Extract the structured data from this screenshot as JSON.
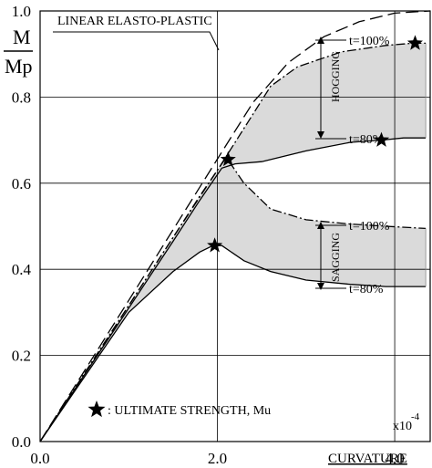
{
  "chart_data": {
    "type": "line",
    "title": "",
    "ylabel_top": "M",
    "ylabel_bottom": "Mp",
    "xlabel": "CURVATURE",
    "x_multiplier": "x10",
    "x_exponent": "-4",
    "xlim": [
      0,
      4.4
    ],
    "ylim": [
      0,
      1.0
    ],
    "xticks": [
      0.0,
      2.0,
      4.0
    ],
    "xtick_labels": [
      "0.0",
      "2.0",
      "4.0"
    ],
    "yticks": [
      0.0,
      0.2,
      0.4,
      0.6,
      0.8,
      1.0
    ],
    "ytick_labels": [
      "0.0",
      "0.2",
      "0.4",
      "0.6",
      "0.8",
      "1.0"
    ],
    "grid": true,
    "annotations": {
      "linear_label": "LINEAR ELASTO-PLASTIC",
      "hogging": "HOGGING",
      "sagging": "SAGGING",
      "hog_t100": "t=100%",
      "hog_t80": "t=80%",
      "sag_t100": "t=100%",
      "sag_t80": "t=80%",
      "legend_text": ": ULTIMATE STRENGTH, Mu"
    },
    "series": [
      {
        "style": "long-dash",
        "x": [
          0,
          0.5,
          1.0,
          1.5,
          2.0,
          2.4,
          2.8,
          3.2,
          3.6,
          4.0,
          4.4
        ],
        "y": [
          0,
          0.164,
          0.328,
          0.492,
          0.656,
          0.787,
          0.88,
          0.94,
          0.975,
          0.995,
          1.0
        ]
      },
      {
        "style": "dash-dot",
        "x": [
          0,
          0.5,
          1.0,
          1.5,
          2.0,
          2.4,
          2.6,
          2.9,
          3.4,
          3.9,
          4.2,
          4.35
        ],
        "y": [
          0,
          0.158,
          0.316,
          0.474,
          0.63,
          0.76,
          0.825,
          0.87,
          0.905,
          0.92,
          0.925,
          0.925
        ]
      },
      {
        "style": "solid",
        "x": [
          0,
          0.5,
          1.0,
          1.5,
          1.8,
          2.05,
          2.2,
          2.5,
          3.0,
          3.5,
          3.85,
          4.1,
          4.35
        ],
        "y": [
          0,
          0.155,
          0.31,
          0.465,
          0.56,
          0.635,
          0.645,
          0.65,
          0.675,
          0.695,
          0.7,
          0.705,
          0.705
        ]
      },
      {
        "style": "dash-dot",
        "x": [
          0,
          0.5,
          1.0,
          1.5,
          1.8,
          2.0,
          2.1,
          2.3,
          2.6,
          3.0,
          3.5,
          3.9,
          4.35
        ],
        "y": [
          0,
          0.158,
          0.316,
          0.474,
          0.57,
          0.63,
          0.66,
          0.6,
          0.54,
          0.515,
          0.505,
          0.5,
          0.495
        ]
      },
      {
        "style": "solid",
        "x": [
          0,
          0.5,
          1.0,
          1.5,
          1.8,
          1.95,
          2.05,
          2.3,
          2.6,
          3.0,
          3.5,
          3.9,
          4.35
        ],
        "y": [
          0,
          0.15,
          0.3,
          0.395,
          0.44,
          0.455,
          0.455,
          0.42,
          0.395,
          0.375,
          0.365,
          0.36,
          0.36
        ]
      }
    ],
    "ultimate_points": [
      {
        "x": 4.23,
        "y": 0.925
      },
      {
        "x": 3.85,
        "y": 0.7
      },
      {
        "x": 2.12,
        "y": 0.655
      },
      {
        "x": 1.97,
        "y": 0.455
      }
    ]
  }
}
